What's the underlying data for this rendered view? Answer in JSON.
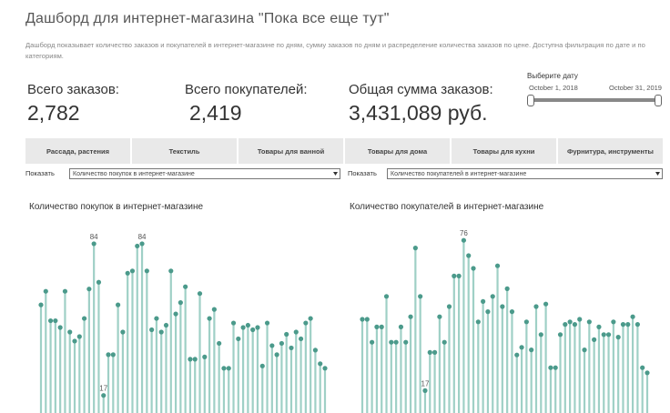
{
  "header": {
    "title": "Дашборд для интернет-магазина \"Пока все еще тут\"",
    "description": "Дашборд показывает количество заказов и покупателей в интернет-магазине по дням, сумму заказов по дням и распределение количества заказов по цене. Доступна фильтрация по дате и по категориям."
  },
  "kpis": [
    {
      "label": "Всего заказов:",
      "value": "2,782"
    },
    {
      "label": "Всего покупателей:",
      "value": "2,419"
    },
    {
      "label": "Общая сумма заказов:",
      "value": "3,431,089 руб."
    }
  ],
  "date_filter": {
    "label": "Выберите дату",
    "start": "October 1, 2018",
    "end": "October 31, 2019"
  },
  "categories_bar": [
    "Рассада, растения",
    "Текстиль",
    "Товары для ванной",
    "Товары для дома",
    "Товары для кухни",
    "Фурнитура, инструменты"
  ],
  "selectors": [
    {
      "label": "Показать",
      "value": "Количество покупок в интернет-магазине"
    },
    {
      "label": "Показать",
      "value": "Количество покупателей в интернет-магазине"
    }
  ],
  "chart_data": [
    {
      "type": "lollipop",
      "title": "Количество покупок в интернет-магазине",
      "values": [
        57,
        63,
        50,
        50,
        47,
        63,
        45,
        41,
        43,
        51,
        64,
        84,
        67,
        17,
        35,
        35,
        57,
        45,
        71,
        72,
        83,
        84,
        72,
        46,
        51,
        45,
        48,
        72,
        53,
        58,
        65,
        33,
        33,
        62,
        34,
        51,
        55,
        40,
        29,
        29,
        49,
        42,
        47,
        48,
        46,
        47,
        30,
        49,
        39,
        35,
        40,
        44,
        38,
        45,
        42,
        49,
        51,
        37,
        31,
        29
      ],
      "ylim": [
        0,
        90
      ],
      "stem_color": "#9fd0c6",
      "dot_color": "#4b9a8b",
      "label_extremes": true
    },
    {
      "type": "lollipop",
      "title": "Количество покупателей в интернет-магазине",
      "values": [
        45,
        45,
        36,
        42,
        42,
        54,
        36,
        36,
        42,
        36,
        46,
        73,
        54,
        17,
        32,
        32,
        46,
        36,
        50,
        62,
        62,
        76,
        70,
        65,
        44,
        52,
        48,
        54,
        66,
        50,
        57,
        48,
        31,
        34,
        44,
        33,
        50,
        39,
        51,
        26,
        26,
        39,
        43,
        44,
        43,
        45,
        33,
        44,
        37,
        42,
        39,
        39,
        44,
        38,
        43,
        43,
        46,
        43,
        26,
        24
      ],
      "ylim": [
        0,
        80
      ],
      "stem_color": "#9fd0c6",
      "dot_color": "#4b9a8b",
      "label_extremes": true
    }
  ]
}
